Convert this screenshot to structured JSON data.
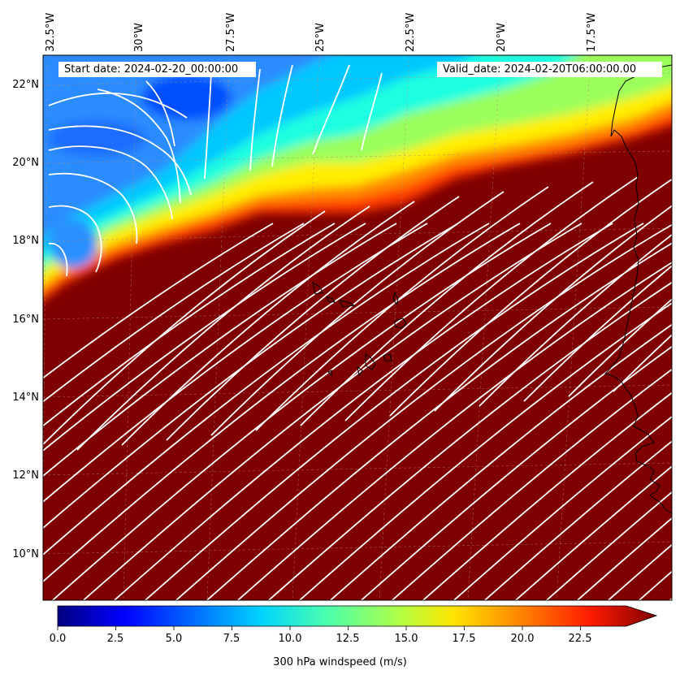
{
  "header": {
    "start_date": "Start date: 2024-02-20_00:00:00",
    "valid_date": "Valid_date: 2024-02-20T06:00:00.00"
  },
  "map": {
    "extent": {
      "lon_west": -32.5,
      "lon_east": -15.5,
      "lat_south": 9.0,
      "lat_north": 22.75
    },
    "lon_ticks": [
      "32.5°W",
      "30°W",
      "27.5°W",
      "25°W",
      "22.5°W",
      "20°W",
      "17.5°W"
    ],
    "lat_ticks": [
      "22°N",
      "20°N",
      "18°N",
      "16°N",
      "14°N",
      "12°N",
      "10°N"
    ],
    "field": "300 hPa windspeed",
    "streamline_color": "#ffffff",
    "coastline_color": "#000000",
    "gridline_color": "#b08c7a"
  },
  "colorbar": {
    "label": "300 hPa windspeed (m/s)",
    "ticks": [
      "0.0",
      "2.5",
      "5.0",
      "7.5",
      "10.0",
      "12.5",
      "15.0",
      "17.5",
      "20.0",
      "22.5"
    ],
    "vmin": 0,
    "vmax": 24,
    "extend": "max",
    "colormap": [
      "#00007f",
      "#0000ff",
      "#007fff",
      "#00ffff",
      "#7fff7f",
      "#ffff00",
      "#ff7f00",
      "#ff0000",
      "#7f0000"
    ]
  }
}
